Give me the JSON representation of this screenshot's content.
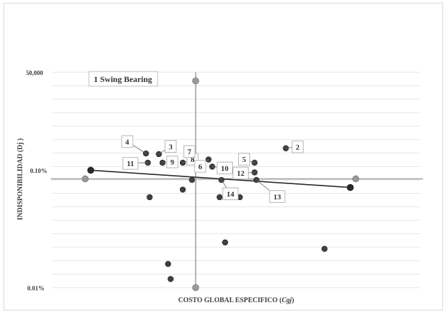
{
  "chart_data": {
    "type": "scatter",
    "xlabel": "COSTO GLOBAL ESPECIFICO (",
    "xlabel_var": "Cgj",
    "xlabel_end": ")",
    "ylabel": "INDISPONIBILIDAD (Dj )",
    "y_scale": "log",
    "y_ticks": [
      "50,000",
      "0.10%",
      "0.01%"
    ],
    "legend_label": "1 Swing Bearing",
    "grid": "horizontal",
    "colors": {
      "points": "#404040",
      "gray_markers": "#9a9a9a",
      "trend": "#262626",
      "ref_lines": "#b0b0b0",
      "grid": "#e6e6e6"
    },
    "labeled_points": [
      {
        "label": "4",
        "x": 0.255,
        "y": 0.623
      },
      {
        "label": "3",
        "x": 0.29,
        "y": 0.62
      },
      {
        "label": "11",
        "x": 0.26,
        "y": 0.58
      },
      {
        "label": "9",
        "x": 0.3,
        "y": 0.58
      },
      {
        "label": "8",
        "x": 0.355,
        "y": 0.58
      },
      {
        "label": "7",
        "x": 0.39,
        "y": 0.58
      },
      {
        "label": "6",
        "x": 0.425,
        "y": 0.595
      },
      {
        "label": "10",
        "x": 0.435,
        "y": 0.562
      },
      {
        "label": "5",
        "x": 0.55,
        "y": 0.58
      },
      {
        "label": "12",
        "x": 0.55,
        "y": 0.535
      },
      {
        "label": "2",
        "x": 0.635,
        "y": 0.647
      },
      {
        "label": "14",
        "x": 0.46,
        "y": 0.5
      },
      {
        "label": "13",
        "x": 0.555,
        "y": 0.5
      }
    ],
    "other_points": [
      {
        "x": 0.265,
        "y": 0.42
      },
      {
        "x": 0.355,
        "y": 0.455
      },
      {
        "x": 0.38,
        "y": 0.5
      },
      {
        "x": 0.455,
        "y": 0.42
      },
      {
        "x": 0.51,
        "y": 0.42
      },
      {
        "x": 0.47,
        "y": 0.21
      },
      {
        "x": 0.315,
        "y": 0.11
      },
      {
        "x": 0.322,
        "y": 0.04
      },
      {
        "x": 0.74,
        "y": 0.18
      }
    ],
    "trend_line": [
      {
        "x": 0.105,
        "y": 0.545
      },
      {
        "x": 0.81,
        "y": 0.465
      }
    ],
    "trend_endpoints": [
      {
        "x": 0.105,
        "y": 0.545
      },
      {
        "x": 0.81,
        "y": 0.465
      }
    ],
    "reference_lines": {
      "x": 0.39,
      "y": 0.505
    },
    "reference_markers": [
      {
        "x": 0.39,
        "y": 0.96
      },
      {
        "x": 0.39,
        "y": 0.0
      },
      {
        "x": 0.09,
        "y": 0.505
      },
      {
        "x": 0.825,
        "y": 0.505
      }
    ]
  }
}
